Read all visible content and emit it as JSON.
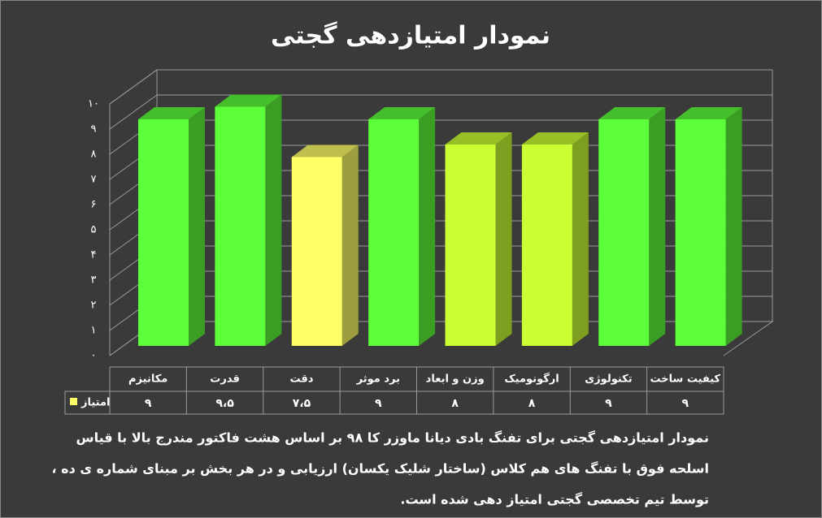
{
  "chart_data": {
    "type": "bar",
    "title": "نمودار امتیازدهی گجتی",
    "categories": [
      "مکانیزم",
      "قدرت",
      "دقت",
      "برد موثر",
      "وزن و ابعاد",
      "ارگونومیک",
      "تکنولوژی",
      "کیفیت ساخت"
    ],
    "series": [
      {
        "name": "امتیاز",
        "color": "#ffff66",
        "colors": [
          "#5dff3a",
          "#5dff3a",
          "#ffff66",
          "#5dff3a",
          "#ccff33",
          "#ccff33",
          "#5dff3a",
          "#5dff3a"
        ],
        "values": [
          9,
          9.5,
          7.5,
          9,
          8,
          8,
          9,
          9
        ],
        "value_labels": [
          "۹",
          "۹،۵",
          "۷،۵",
          "۹",
          "۸",
          "۸",
          "۹",
          "۹"
        ]
      }
    ],
    "ylim": [
      0,
      10
    ],
    "yticks": [
      {
        "value": 0,
        "label": "۰"
      },
      {
        "value": 1,
        "label": "۱"
      },
      {
        "value": 2,
        "label": "۲"
      },
      {
        "value": 3,
        "label": "۳"
      },
      {
        "value": 4,
        "label": "۴"
      },
      {
        "value": 5,
        "label": "۵"
      },
      {
        "value": 6,
        "label": "۶"
      },
      {
        "value": 7,
        "label": "۷"
      },
      {
        "value": 8,
        "label": "۸"
      },
      {
        "value": 9,
        "label": "۹"
      },
      {
        "value": 10,
        "label": "۱۰"
      }
    ],
    "grid": true,
    "notes": [
      "نمودار امتیازدهی گجتی برای تفنگ بادی دیانا  ماوزر کا ۹۸ بر اساس هشت فاکتور مندرج بالا با قیاس",
      "اسلحه فوق با تفنگ های هم کلاس (ساختار شلیک یکسان) ارزیابی و در هر بخش بر مبنای شماره ی ده ،",
      "توسط تیم تخصصی گجتی امتیاز دهی شده است."
    ]
  }
}
